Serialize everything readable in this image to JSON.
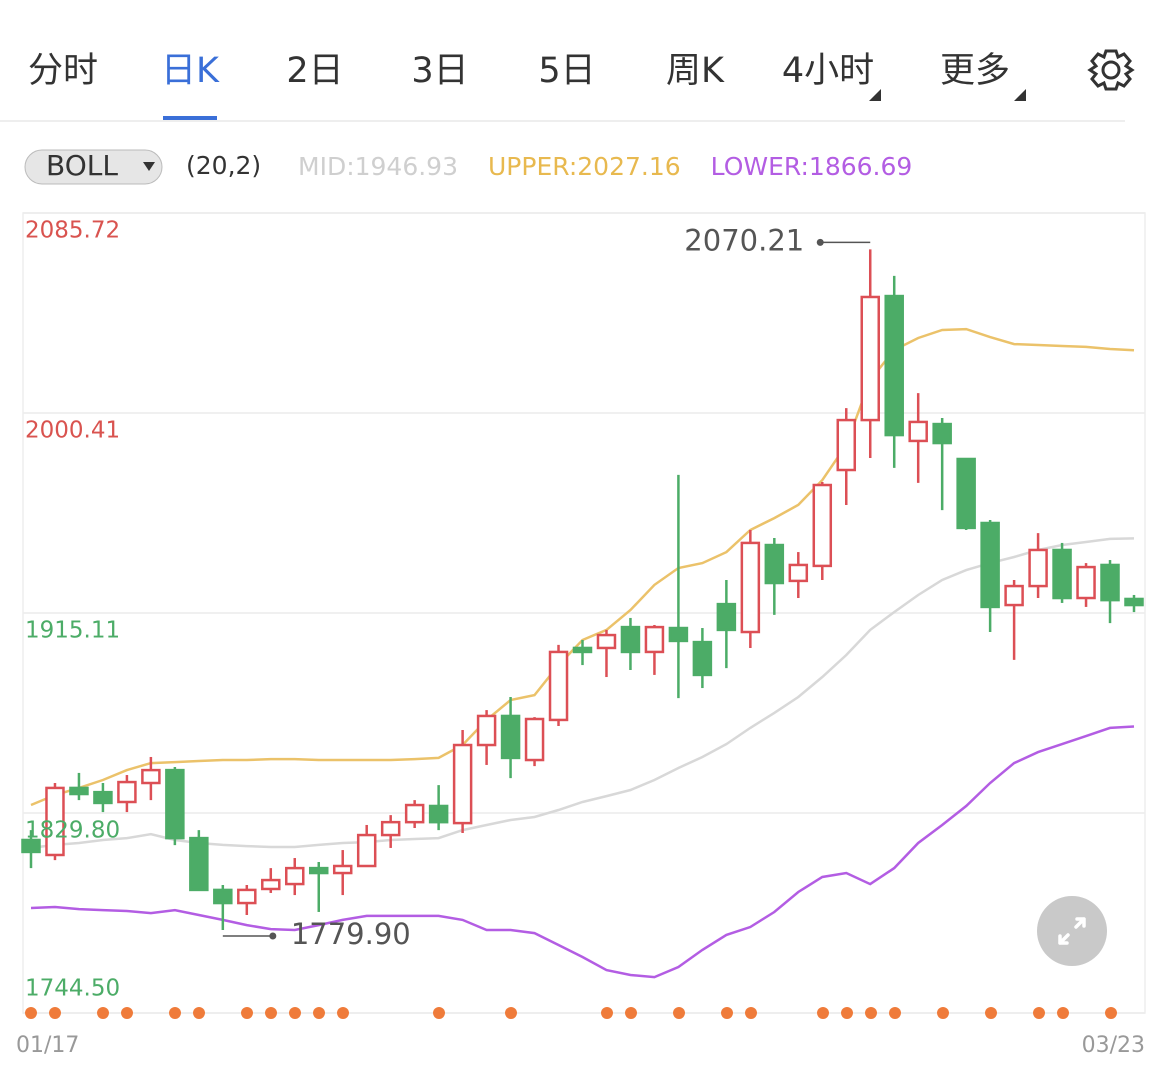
{
  "tabs": {
    "items": [
      "分时",
      "日K",
      "2日",
      "3日",
      "5日",
      "周K",
      "4小时",
      "更多"
    ],
    "active": 1
  },
  "indicator": {
    "name": "BOLL",
    "params": "(20,2)"
  },
  "chart_data": {
    "type": "candlestick",
    "categories": [
      "01/17",
      null,
      null,
      null,
      null,
      null,
      null,
      null,
      null,
      null,
      null,
      null,
      null,
      null,
      null,
      null,
      null,
      null,
      null,
      null,
      null,
      null,
      null,
      null,
      null,
      null,
      null,
      null,
      null,
      null,
      null,
      null,
      null,
      null,
      null,
      null,
      null,
      null,
      null,
      null,
      null,
      null,
      null,
      null,
      null,
      null,
      "03/23"
    ],
    "open": [
      1818.3,
      1811.9,
      1840.5,
      1838.7,
      1834.5,
      1842.6,
      1848.1,
      1819.1,
      1797.0,
      1791.4,
      1797.4,
      1799.5,
      1806.3,
      1804.2,
      1807.2,
      1820.4,
      1825.9,
      1832.8,
      1825.5,
      1858.8,
      1871.2,
      1852.4,
      1869.5,
      1900.2,
      1900.2,
      1909.1,
      1898.5,
      1908.7,
      1902.7,
      1918.9,
      1907.0,
      1944.1,
      1928.8,
      1935.2,
      1976.1,
      1997.4,
      2050.3,
      1988.5,
      1995.7,
      1980.8,
      1953.5,
      1918.5,
      1926.6,
      1942.0,
      1921.5,
      1935.6,
      1921.1
    ],
    "high": [
      1822.5,
      1842.6,
      1846.9,
      1842.6,
      1846.0,
      1853.7,
      1849.4,
      1822.5,
      1799.1,
      1799.1,
      1806.3,
      1810.6,
      1808.9,
      1814.0,
      1824.7,
      1828.9,
      1835.3,
      1841.7,
      1865.2,
      1873.7,
      1879.3,
      1870.7,
      1901.5,
      1903.6,
      1907.9,
      1913.0,
      1910.0,
      1974.0,
      1908.7,
      1929.2,
      1950.5,
      1947.1,
      1941.1,
      1971.0,
      2002.5,
      2070.21,
      2058.9,
      2008.9,
      1998.3,
      1980.8,
      1954.8,
      1929.2,
      1949.2,
      1945.0,
      1936.4,
      1937.7,
      1922.8
    ],
    "low": [
      1806.3,
      1809.7,
      1835.3,
      1830.2,
      1830.2,
      1835.3,
      1816.1,
      1797.0,
      1779.9,
      1786.3,
      1795.7,
      1794.8,
      1787.6,
      1794.8,
      1807.2,
      1814.9,
      1823.4,
      1822.5,
      1821.3,
      1850.3,
      1844.7,
      1849.8,
      1866.9,
      1892.9,
      1887.8,
      1890.8,
      1888.7,
      1878.8,
      1883.1,
      1891.6,
      1900.2,
      1914.3,
      1921.5,
      1929.2,
      1961.2,
      1981.2,
      1977.0,
      1970.6,
      1959.0,
      1950.5,
      1907.0,
      1895.1,
      1921.5,
      1919.4,
      1917.7,
      1910.8,
      1915.5
    ],
    "close": [
      1813.2,
      1840.5,
      1837.9,
      1834.1,
      1843.0,
      1848.1,
      1819.1,
      1797.0,
      1791.4,
      1797.0,
      1801.2,
      1806.3,
      1804.2,
      1807.2,
      1820.4,
      1825.9,
      1833.2,
      1825.9,
      1858.8,
      1871.2,
      1853.3,
      1869.9,
      1898.5,
      1898.5,
      1905.7,
      1898.5,
      1909.1,
      1903.2,
      1888.7,
      1907.9,
      1945.0,
      1927.9,
      1935.6,
      1969.7,
      1997.4,
      2049.9,
      1991.0,
      1996.6,
      1987.6,
      1951.4,
      1917.7,
      1926.6,
      1942.0,
      1921.5,
      1934.7,
      1920.6,
      1918.5
    ],
    "up_color": "#dc4f55",
    "down_color": "#4cac67",
    "series": [
      {
        "name": "MID",
        "legend_label": "MID:1946.93",
        "color": "#d8d8d8",
        "legend_color": "#cfcfcf",
        "values": [
          1814.9,
          1816.2,
          1817.0,
          1818.3,
          1819.1,
          1820.8,
          1818.3,
          1817.0,
          1816.2,
          1815.7,
          1815.3,
          1815.3,
          1816.2,
          1817.0,
          1817.4,
          1818.3,
          1818.7,
          1819.1,
          1822.5,
          1824.7,
          1826.8,
          1828.1,
          1831.1,
          1834.5,
          1837.0,
          1839.6,
          1843.9,
          1849.0,
          1853.7,
          1859.2,
          1866.1,
          1872.5,
          1879.3,
          1887.8,
          1897.2,
          1907.9,
          1915.5,
          1922.8,
          1929.2,
          1933.4,
          1936.4,
          1939.0,
          1942.0,
          1944.1,
          1945.4,
          1946.7,
          1946.93
        ]
      },
      {
        "name": "UPPER",
        "legend_label": "UPPER:2027.16",
        "color": "#ebc26a",
        "legend_color": "#e8b94f",
        "values": [
          1833.2,
          1837.5,
          1840.5,
          1843.9,
          1848.1,
          1851.1,
          1851.5,
          1852.0,
          1852.4,
          1852.4,
          1852.8,
          1852.8,
          1852.4,
          1852.4,
          1852.4,
          1852.4,
          1852.8,
          1853.3,
          1858.8,
          1869.5,
          1878.0,
          1880.1,
          1892.9,
          1903.6,
          1907.9,
          1916.4,
          1927.1,
          1934.3,
          1936.4,
          1941.1,
          1950.5,
          1955.6,
          1961.2,
          1971.8,
          1986.8,
          2014.5,
          2027.3,
          2032.4,
          2035.8,
          2036.2,
          2032.8,
          2029.8,
          2029.4,
          2029.0,
          2028.6,
          2027.7,
          2027.16
        ]
      },
      {
        "name": "LOWER",
        "legend_label": "LOWER:1866.69",
        "color": "#b35de3",
        "legend_color": "#b35de3",
        "values": [
          1789.3,
          1789.7,
          1788.8,
          1788.4,
          1788.0,
          1787.1,
          1788.4,
          1786.3,
          1784.2,
          1782.0,
          1780.3,
          1779.9,
          1782.0,
          1784.2,
          1785.9,
          1785.9,
          1785.9,
          1785.9,
          1784.2,
          1779.9,
          1779.9,
          1778.6,
          1773.5,
          1768.4,
          1762.8,
          1760.7,
          1759.8,
          1764.1,
          1771.4,
          1777.8,
          1781.2,
          1787.6,
          1796.1,
          1802.5,
          1804.2,
          1799.5,
          1806.3,
          1817.0,
          1824.7,
          1832.8,
          1842.6,
          1851.1,
          1855.8,
          1859.2,
          1862.6,
          1866.1,
          1866.69
        ]
      }
    ],
    "ylim": [
      1744.5,
      2085.72
    ],
    "yticks": [
      {
        "value": 2085.72,
        "label": "2085.72"
      },
      2000.41,
      1915.11,
      {
        "value": 1829.8,
        "label": "1829.80"
      },
      {
        "value": 1744.5,
        "label": "1744.50"
      }
    ],
    "ytick_colors": [
      "#d9534f",
      "#d9534f",
      "#4cac67",
      "#4cac67",
      "#4cac67"
    ],
    "grid": true,
    "annotations": [
      {
        "label": "2070.21",
        "value": 2070.21,
        "at": "high"
      },
      {
        "label": "1779.90",
        "value": 1779.9,
        "at": "low"
      }
    ]
  }
}
